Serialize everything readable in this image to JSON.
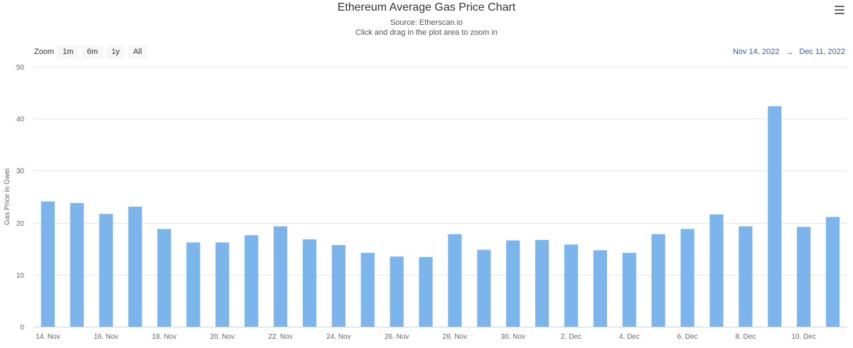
{
  "header": {
    "title": "Ethereum Average Gas Price Chart",
    "source": "Source: Etherscan.io",
    "hint": "Click and drag in the plot area to zoom in"
  },
  "menu_icon": "hamburger-menu-icon",
  "zoom": {
    "label": "Zoom",
    "buttons": [
      "1m",
      "6m",
      "1y",
      "All"
    ]
  },
  "range": {
    "from": "Nov 14, 2022",
    "arrow": "→",
    "to": "Dec 11, 2022"
  },
  "colors": {
    "bar": "#7cb5ec",
    "grid": "#e6e6e6",
    "link": "#335cad"
  },
  "chart_data": {
    "type": "bar",
    "title": "Ethereum Average Gas Price Chart",
    "subtitle": "Source: Etherscan.io",
    "xlabel": "",
    "ylabel": "Gas Price in Gwei",
    "ylim": [
      0,
      50
    ],
    "yticks": [
      0,
      10,
      20,
      30,
      40,
      50
    ],
    "grid": true,
    "categories": [
      "14. Nov",
      "15. Nov",
      "16. Nov",
      "17. Nov",
      "18. Nov",
      "19. Nov",
      "20. Nov",
      "21. Nov",
      "22. Nov",
      "23. Nov",
      "24. Nov",
      "25. Nov",
      "26. Nov",
      "27. Nov",
      "28. Nov",
      "29. Nov",
      "30. Nov",
      "1. Dec",
      "2. Dec",
      "3. Dec",
      "4. Dec",
      "5. Dec",
      "6. Dec",
      "7. Dec",
      "8. Dec",
      "9. Dec",
      "10. Dec",
      "11. Dec"
    ],
    "values": [
      24.1,
      23.8,
      21.7,
      23.1,
      18.8,
      16.2,
      16.2,
      17.6,
      19.3,
      16.8,
      15.7,
      14.2,
      13.5,
      13.4,
      17.8,
      14.8,
      16.6,
      16.7,
      15.8,
      14.7,
      14.2,
      17.8,
      18.8,
      21.6,
      19.3,
      42.4,
      19.2,
      21.1
    ],
    "xtick_labels": [
      "14. Nov",
      "16. Nov",
      "18. Nov",
      "20. Nov",
      "22. Nov",
      "24. Nov",
      "26. Nov",
      "28. Nov",
      "30. Nov",
      "2. Dec",
      "4. Dec",
      "6. Dec",
      "8. Dec",
      "10. Dec"
    ]
  }
}
